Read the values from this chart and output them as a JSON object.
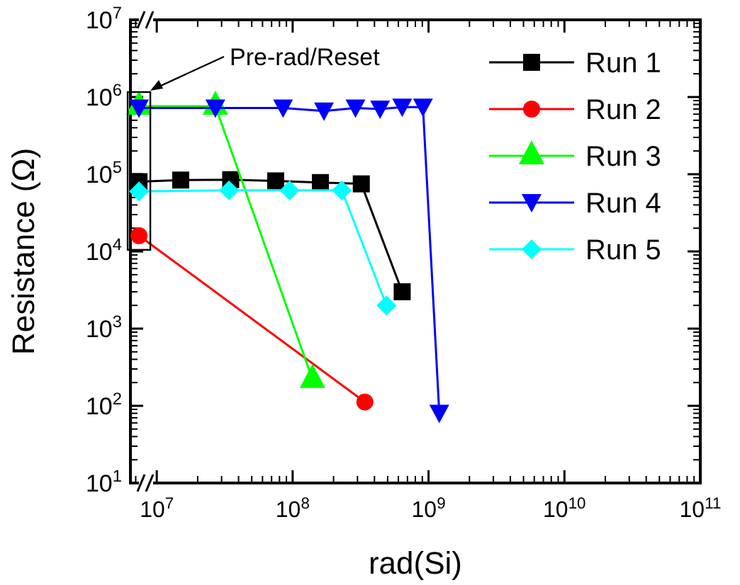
{
  "chart_data": {
    "type": "line",
    "xlabel": "rad(Si)",
    "ylabel": "Resistance (Ω)",
    "log": "xy",
    "xlim": [
      6400000.0,
      100000000000.0
    ],
    "ylim": [
      10,
      10000000.0
    ],
    "xticks": [
      {
        "value": 10000000.0,
        "label": "10$^{7}$"
      },
      {
        "value": 100000000.0,
        "label": "10$^{8}$"
      },
      {
        "value": 1000000000.0,
        "label": "10$^{9}$"
      },
      {
        "value": 10000000000.0,
        "label": "10$^{10}$"
      },
      {
        "value": 100000000000.0,
        "label": "10$^{11}$"
      }
    ],
    "yticks": [
      {
        "value": 10,
        "label": "10$^{1}$"
      },
      {
        "value": 100,
        "label": "10$^{2}$"
      },
      {
        "value": 1000,
        "label": "10$^{3}$"
      },
      {
        "value": 10000,
        "label": "10$^{4}$"
      },
      {
        "value": 100000,
        "label": "10$^{5}$"
      },
      {
        "value": 1000000,
        "label": "10$^{6}$"
      },
      {
        "value": 10000000,
        "label": "10$^{7}$"
      }
    ],
    "grid": false,
    "legend": "top right",
    "line_style": "solid",
    "annotations": [
      "Pre-rad/Reset"
    ],
    "series": [
      {
        "name": "Run 1",
        "color": "#000000",
        "marker": "square",
        "x": [
          7400000.0,
          15000000.0,
          35000000.0,
          75000000.0,
          160000000.0,
          320000000.0,
          640000000.0
        ],
        "values": [
          80000,
          84000,
          85000,
          82000,
          78000,
          75000,
          3000
        ]
      },
      {
        "name": "Run 2",
        "color": "#ff0000",
        "marker": "circle",
        "x": [
          7400000.0,
          340000000.0
        ],
        "values": [
          16000,
          112
        ]
      },
      {
        "name": "Run 3",
        "color": "#00ff00",
        "marker": "triangle",
        "x": [
          7400000.0,
          27000000.0,
          140000000.0
        ],
        "values": [
          760000,
          760000,
          220
        ]
      },
      {
        "name": "Run 4",
        "color": "#0000ff",
        "marker": "triangle-down",
        "x": [
          7400000.0,
          27000000.0,
          85000000.0,
          170000000.0,
          290000000.0,
          440000000.0,
          640000000.0,
          910000000.0,
          1200000000.0
        ],
        "values": [
          720000,
          720000,
          720000,
          660000,
          720000,
          700000,
          740000,
          740000,
          80
        ]
      },
      {
        "name": "Run 5",
        "color": "#00ffff",
        "marker": "diamond",
        "x": [
          7400000.0,
          34000000.0,
          95000000.0,
          230000000.0,
          490000000.0
        ],
        "values": [
          60000,
          62000,
          62000,
          62000,
          2000
        ]
      }
    ]
  }
}
